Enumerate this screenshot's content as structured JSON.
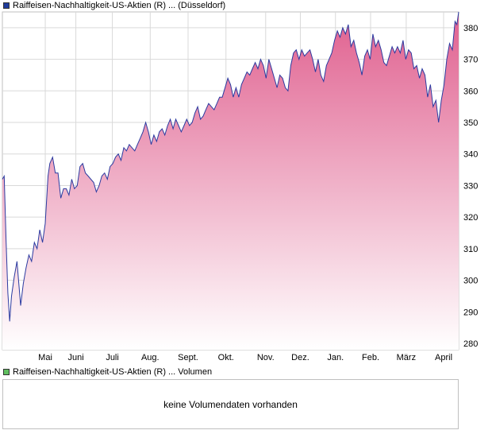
{
  "colors": {
    "line": "#2b3aa0",
    "fill_top": "#e0608f",
    "fill_bottom": "#ffffff",
    "price_swatch": "#1f3c9c",
    "volume_swatch": "#5fbf5f",
    "grid": "#d9d9d9",
    "border": "#bfbfbf"
  },
  "legend": {
    "price_label": "Raiffeisen-Nachhaltigkeit-US-Aktien (R) ... (Düsseldorf)",
    "volume_label": "Raiffeisen-Nachhaltigkeit-US-Aktien (R) ... Volumen"
  },
  "volume_panel": {
    "message": "keine Volumendaten vorhanden"
  },
  "chart_data": {
    "type": "area",
    "title": "",
    "xlabel": "",
    "ylabel": "",
    "ylim": [
      278,
      385
    ],
    "yticks": [
      280,
      290,
      300,
      310,
      320,
      330,
      340,
      350,
      360,
      370,
      380
    ],
    "month_labels": [
      "Mai",
      "Juni",
      "Juli",
      "Aug.",
      "Sept.",
      "Okt.",
      "Nov.",
      "Dez.",
      "Jan.",
      "Feb.",
      "März",
      "April"
    ],
    "month_positions": [
      0.094,
      0.161,
      0.241,
      0.324,
      0.407,
      0.49,
      0.577,
      0.653,
      0.73,
      0.807,
      0.885,
      0.967
    ],
    "grid": true,
    "legend_position": "top-left",
    "series": [
      {
        "values": [
          [
            0.0,
            332
          ],
          [
            0.004,
            333
          ],
          [
            0.008,
            313
          ],
          [
            0.012,
            296
          ],
          [
            0.016,
            287
          ],
          [
            0.02,
            295
          ],
          [
            0.026,
            301
          ],
          [
            0.032,
            306
          ],
          [
            0.036,
            299
          ],
          [
            0.04,
            292
          ],
          [
            0.046,
            299
          ],
          [
            0.052,
            304
          ],
          [
            0.058,
            308
          ],
          [
            0.064,
            306
          ],
          [
            0.07,
            312
          ],
          [
            0.076,
            310
          ],
          [
            0.082,
            316
          ],
          [
            0.088,
            312
          ],
          [
            0.094,
            318
          ],
          [
            0.1,
            333
          ],
          [
            0.104,
            337
          ],
          [
            0.11,
            339
          ],
          [
            0.116,
            334
          ],
          [
            0.122,
            334
          ],
          [
            0.128,
            326
          ],
          [
            0.134,
            329
          ],
          [
            0.14,
            329
          ],
          [
            0.146,
            327
          ],
          [
            0.152,
            332
          ],
          [
            0.158,
            329
          ],
          [
            0.164,
            330
          ],
          [
            0.17,
            336
          ],
          [
            0.176,
            337
          ],
          [
            0.182,
            334
          ],
          [
            0.188,
            333
          ],
          [
            0.194,
            332
          ],
          [
            0.2,
            331
          ],
          [
            0.206,
            328
          ],
          [
            0.212,
            330
          ],
          [
            0.218,
            333
          ],
          [
            0.224,
            334
          ],
          [
            0.23,
            332
          ],
          [
            0.236,
            336
          ],
          [
            0.242,
            337
          ],
          [
            0.248,
            339
          ],
          [
            0.254,
            340
          ],
          [
            0.26,
            338
          ],
          [
            0.266,
            342
          ],
          [
            0.272,
            341
          ],
          [
            0.278,
            343
          ],
          [
            0.284,
            342
          ],
          [
            0.29,
            341
          ],
          [
            0.296,
            343
          ],
          [
            0.302,
            345
          ],
          [
            0.308,
            347
          ],
          [
            0.314,
            350
          ],
          [
            0.32,
            347
          ],
          [
            0.326,
            343
          ],
          [
            0.332,
            346
          ],
          [
            0.338,
            344
          ],
          [
            0.344,
            347
          ],
          [
            0.35,
            348
          ],
          [
            0.356,
            346
          ],
          [
            0.362,
            349
          ],
          [
            0.368,
            351
          ],
          [
            0.374,
            348
          ],
          [
            0.38,
            351
          ],
          [
            0.386,
            349
          ],
          [
            0.392,
            347
          ],
          [
            0.398,
            349
          ],
          [
            0.404,
            351
          ],
          [
            0.41,
            349
          ],
          [
            0.416,
            350
          ],
          [
            0.422,
            353
          ],
          [
            0.428,
            355
          ],
          [
            0.434,
            351
          ],
          [
            0.44,
            352
          ],
          [
            0.446,
            354
          ],
          [
            0.452,
            356
          ],
          [
            0.458,
            355
          ],
          [
            0.464,
            354
          ],
          [
            0.47,
            356
          ],
          [
            0.476,
            358
          ],
          [
            0.482,
            358
          ],
          [
            0.488,
            361
          ],
          [
            0.494,
            364
          ],
          [
            0.5,
            362
          ],
          [
            0.506,
            358
          ],
          [
            0.512,
            361
          ],
          [
            0.518,
            358
          ],
          [
            0.524,
            362
          ],
          [
            0.53,
            364
          ],
          [
            0.536,
            366
          ],
          [
            0.542,
            365
          ],
          [
            0.548,
            367
          ],
          [
            0.554,
            369
          ],
          [
            0.56,
            367
          ],
          [
            0.566,
            370
          ],
          [
            0.572,
            368
          ],
          [
            0.578,
            364
          ],
          [
            0.584,
            370
          ],
          [
            0.59,
            367
          ],
          [
            0.596,
            364
          ],
          [
            0.602,
            361
          ],
          [
            0.608,
            365
          ],
          [
            0.614,
            364
          ],
          [
            0.62,
            361
          ],
          [
            0.626,
            360
          ],
          [
            0.632,
            368
          ],
          [
            0.638,
            372
          ],
          [
            0.644,
            373
          ],
          [
            0.65,
            370
          ],
          [
            0.656,
            373
          ],
          [
            0.662,
            371
          ],
          [
            0.668,
            372
          ],
          [
            0.674,
            373
          ],
          [
            0.68,
            370
          ],
          [
            0.686,
            366
          ],
          [
            0.692,
            370
          ],
          [
            0.698,
            365
          ],
          [
            0.704,
            363
          ],
          [
            0.71,
            368
          ],
          [
            0.716,
            370
          ],
          [
            0.722,
            372
          ],
          [
            0.728,
            376
          ],
          [
            0.734,
            379
          ],
          [
            0.74,
            377
          ],
          [
            0.746,
            380
          ],
          [
            0.752,
            378
          ],
          [
            0.758,
            381
          ],
          [
            0.764,
            374
          ],
          [
            0.77,
            376
          ],
          [
            0.776,
            372
          ],
          [
            0.782,
            369
          ],
          [
            0.788,
            365
          ],
          [
            0.794,
            371
          ],
          [
            0.8,
            373
          ],
          [
            0.806,
            370
          ],
          [
            0.812,
            378
          ],
          [
            0.818,
            374
          ],
          [
            0.824,
            376
          ],
          [
            0.83,
            373
          ],
          [
            0.836,
            369
          ],
          [
            0.842,
            368
          ],
          [
            0.848,
            371
          ],
          [
            0.854,
            374
          ],
          [
            0.86,
            372
          ],
          [
            0.866,
            374
          ],
          [
            0.872,
            372
          ],
          [
            0.878,
            376
          ],
          [
            0.884,
            370
          ],
          [
            0.89,
            373
          ],
          [
            0.896,
            372
          ],
          [
            0.902,
            367
          ],
          [
            0.908,
            368
          ],
          [
            0.914,
            364
          ],
          [
            0.92,
            367
          ],
          [
            0.926,
            365
          ],
          [
            0.932,
            358
          ],
          [
            0.938,
            362
          ],
          [
            0.944,
            355
          ],
          [
            0.95,
            357
          ],
          [
            0.956,
            350
          ],
          [
            0.962,
            357
          ],
          [
            0.968,
            362
          ],
          [
            0.974,
            370
          ],
          [
            0.98,
            375
          ],
          [
            0.986,
            373
          ],
          [
            0.992,
            382
          ],
          [
            0.996,
            381
          ],
          [
            1.0,
            385
          ]
        ]
      }
    ]
  }
}
